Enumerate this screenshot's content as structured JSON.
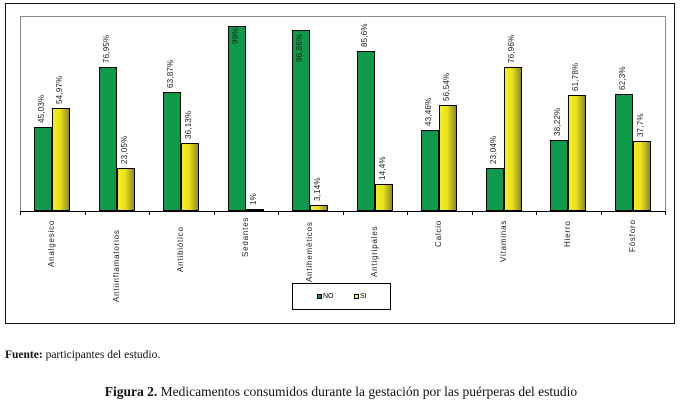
{
  "chart_data": {
    "type": "bar",
    "title": "Figura 2. Medicamentos consumidos durante la gestación por las puérperas del estudio",
    "xlabel": "",
    "ylabel": "",
    "ylim": [
      0,
      100
    ],
    "grid": false,
    "legend_position": "bottom",
    "categories": [
      "Analgesico",
      "Antiinflamatorios",
      "Antibiótico",
      "Sedantes",
      "Antihemèticos",
      "Antigripales",
      "Calcio",
      "Vitaminas",
      "Hierro",
      "Fósforo"
    ],
    "series": [
      {
        "name": "NO",
        "color": "#0e9a4a",
        "values": [
          45.03,
          76.95,
          63.87,
          99,
          96.86,
          85.6,
          43.46,
          23.04,
          38.22,
          62.3
        ],
        "labels": [
          "45,03%",
          "76,95%",
          "63,87%",
          "99%",
          "96,86%",
          "85,6%",
          "43,46%",
          "23,04%",
          "38,22%",
          "62,3%"
        ]
      },
      {
        "name": "SI",
        "color": "#e8e21a",
        "values": [
          54.97,
          23.05,
          36.13,
          1,
          3.14,
          14.4,
          56.54,
          76.96,
          61.78,
          37.7
        ],
        "labels": [
          "54,97%",
          "23,05%",
          "36,13%",
          "1%",
          "3,14%",
          "14,4%",
          "56,54%",
          "76,96%",
          "61,78%",
          "37,7%"
        ]
      }
    ]
  },
  "legend": {
    "items": [
      {
        "label": "NO",
        "color": "#0e9a4a"
      },
      {
        "label": "SI",
        "color": "#e8e21a"
      }
    ]
  },
  "footer": {
    "source_label": "Fuente:",
    "source_text": " participantes del estudio."
  },
  "caption": {
    "label": "Figura 2.",
    "text": " Medicamentos consumidos durante la gestación por las puérperas del estudio"
  }
}
